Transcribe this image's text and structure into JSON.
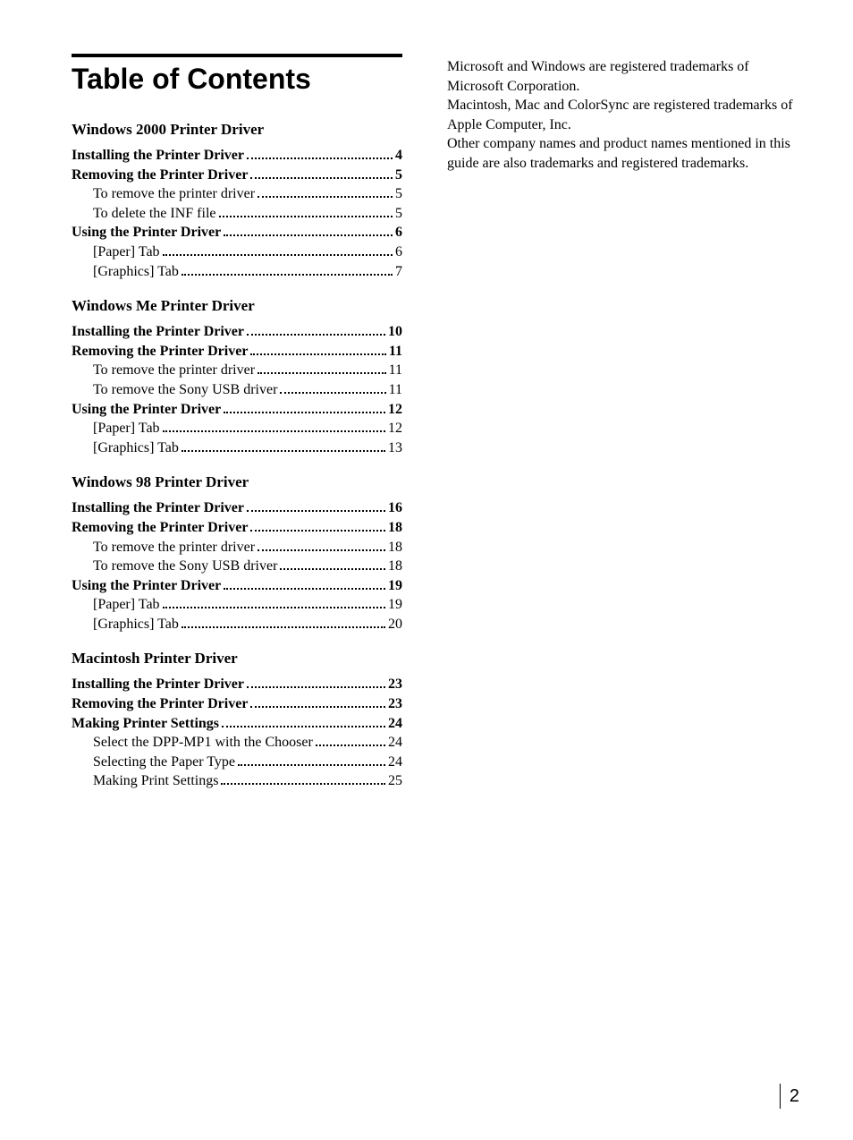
{
  "title": "Table of Contents",
  "page_number": "2",
  "colors": {
    "text": "#000000",
    "background": "#ffffff",
    "rule": "#000000"
  },
  "typography": {
    "title_font": "Arial",
    "title_size_pt": 24,
    "title_weight": 700,
    "body_font": "Times New Roman",
    "body_size_pt": 12,
    "heading_size_pt": 13,
    "heading_weight": 700
  },
  "sections": [
    {
      "heading": "Windows 2000 Printer Driver",
      "entries": [
        {
          "label": "Installing the Printer Driver",
          "page": "4",
          "bold": true,
          "indent": 0
        },
        {
          "label": "Removing the Printer Driver",
          "page": "5",
          "bold": true,
          "indent": 0
        },
        {
          "label": "To remove the printer driver",
          "page": "5",
          "bold": false,
          "indent": 1
        },
        {
          "label": "To delete the INF file",
          "page": "5",
          "bold": false,
          "indent": 1
        },
        {
          "label": "Using the Printer Driver",
          "page": "6",
          "bold": true,
          "indent": 0
        },
        {
          "label": "[Paper] Tab",
          "page": "6",
          "bold": false,
          "indent": 1
        },
        {
          "label": "[Graphics] Tab",
          "page": "7",
          "bold": false,
          "indent": 1
        }
      ]
    },
    {
      "heading": "Windows Me Printer Driver",
      "entries": [
        {
          "label": "Installing the Printer Driver",
          "page": "10",
          "bold": true,
          "indent": 0
        },
        {
          "label": "Removing the Printer Driver",
          "page": "11",
          "bold": true,
          "indent": 0
        },
        {
          "label": "To remove the printer driver",
          "page": "11",
          "bold": false,
          "indent": 1
        },
        {
          "label": "To remove the Sony USB driver",
          "page": "11",
          "bold": false,
          "indent": 1
        },
        {
          "label": "Using the Printer Driver",
          "page": "12",
          "bold": true,
          "indent": 0
        },
        {
          "label": "[Paper] Tab",
          "page": "12",
          "bold": false,
          "indent": 1
        },
        {
          "label": "[Graphics] Tab",
          "page": "13",
          "bold": false,
          "indent": 1
        }
      ]
    },
    {
      "heading": "Windows 98 Printer Driver",
      "entries": [
        {
          "label": "Installing the Printer Driver",
          "page": "16",
          "bold": true,
          "indent": 0
        },
        {
          "label": "Removing the Printer Driver",
          "page": "18",
          "bold": true,
          "indent": 0
        },
        {
          "label": "To remove the printer driver",
          "page": "18",
          "bold": false,
          "indent": 1
        },
        {
          "label": "To remove the Sony USB driver",
          "page": "18",
          "bold": false,
          "indent": 1
        },
        {
          "label": "Using the Printer Driver",
          "page": "19",
          "bold": true,
          "indent": 0
        },
        {
          "label": "[Paper] Tab",
          "page": "19",
          "bold": false,
          "indent": 1
        },
        {
          "label": "[Graphics] Tab",
          "page": "20",
          "bold": false,
          "indent": 1
        }
      ]
    },
    {
      "heading": "Macintosh Printer Driver",
      "entries": [
        {
          "label": "Installing the Printer Driver",
          "page": "23",
          "bold": true,
          "indent": 0
        },
        {
          "label": "Removing the Printer Driver",
          "page": "23",
          "bold": true,
          "indent": 0
        },
        {
          "label": "Making Printer Settings",
          "page": "24",
          "bold": true,
          "indent": 0
        },
        {
          "label": "Select the DPP-MP1 with the Chooser",
          "page": "24",
          "bold": false,
          "indent": 1
        },
        {
          "label": "Selecting the Paper Type",
          "page": "24",
          "bold": false,
          "indent": 1
        },
        {
          "label": "Making Print Settings",
          "page": "25",
          "bold": false,
          "indent": 1
        }
      ]
    }
  ],
  "trademark_text": "Microsoft and Windows are registered trademarks of Microsoft Corporation.\nMacintosh, Mac and ColorSync are registered trademarks of Apple Computer, Inc.\nOther company names and product names mentioned in this guide are also trademarks and registered trademarks."
}
